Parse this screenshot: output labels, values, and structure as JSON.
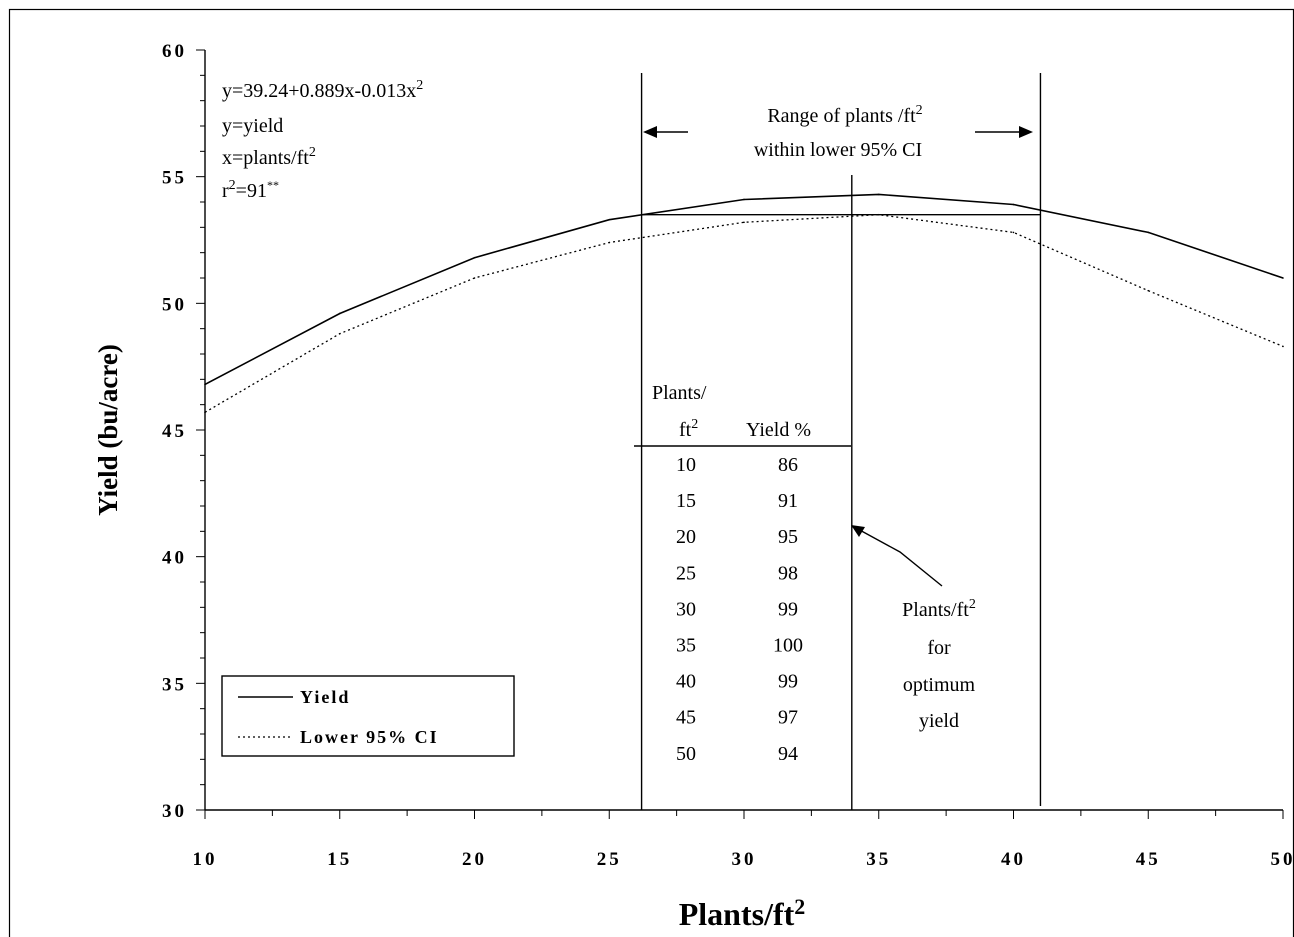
{
  "chart_data": {
    "type": "line",
    "x_label": "Plants/ft",
    "x_label_sup": "2",
    "y_label": "Yield (bu/acre)",
    "xlim": [
      10,
      50
    ],
    "ylim": [
      30,
      60
    ],
    "x_ticks": [
      "10",
      "15",
      "20",
      "25",
      "30",
      "35",
      "40",
      "45",
      "50"
    ],
    "y_ticks": [
      "30",
      "35",
      "40",
      "45",
      "50",
      "55",
      "60"
    ],
    "grid": false,
    "legend_position": "bottom-left",
    "series": [
      {
        "name": "Yield",
        "style": "solid",
        "color": "#000000",
        "x": [
          10,
          15,
          20,
          25,
          30,
          35,
          40,
          45,
          50
        ],
        "y": [
          46.8,
          49.6,
          51.8,
          53.3,
          54.1,
          54.3,
          53.9,
          52.8,
          51.0
        ]
      },
      {
        "name": "Lower 95% CI",
        "style": "dotted",
        "color": "#000000",
        "x": [
          10,
          15,
          20,
          25,
          30,
          35,
          40,
          45,
          50
        ],
        "y": [
          45.7,
          48.8,
          51.0,
          52.4,
          53.2,
          53.5,
          52.8,
          50.5,
          48.3
        ]
      }
    ],
    "reference_lines": {
      "range_low_x": 26.2,
      "range_high_x": 41.0,
      "optimum_x": 34.0,
      "ci_level_y": 53.5
    },
    "equation": {
      "lines": [
        "y=39.24+0.889x-0.013x",
        "y=yield",
        "x=plants/ft",
        "r"
      ],
      "eq_sup": "2",
      "ft_sup": "2",
      "r_sup": "2",
      "r_value": "=91",
      "r_stars": "**"
    },
    "range_annotation": {
      "line1": "Range of plants /ft",
      "line1_sup": "2",
      "line2": "within lower 95% CI"
    },
    "optimum_annotation": {
      "line1": "Plants/ft",
      "line1_sup": "2",
      "line2": "for",
      "line3": "optimum",
      "line4": "yield"
    },
    "table": {
      "header_col1_line1": "Plants/",
      "header_col1_line2": "ft",
      "header_col1_sup": "2",
      "header_col2": "Yield %",
      "rows": [
        [
          "10",
          "86"
        ],
        [
          "15",
          "91"
        ],
        [
          "20",
          "95"
        ],
        [
          "25",
          "98"
        ],
        [
          "30",
          "99"
        ],
        [
          "35",
          "100"
        ],
        [
          "40",
          "99"
        ],
        [
          "45",
          "97"
        ],
        [
          "50",
          "94"
        ]
      ]
    }
  }
}
